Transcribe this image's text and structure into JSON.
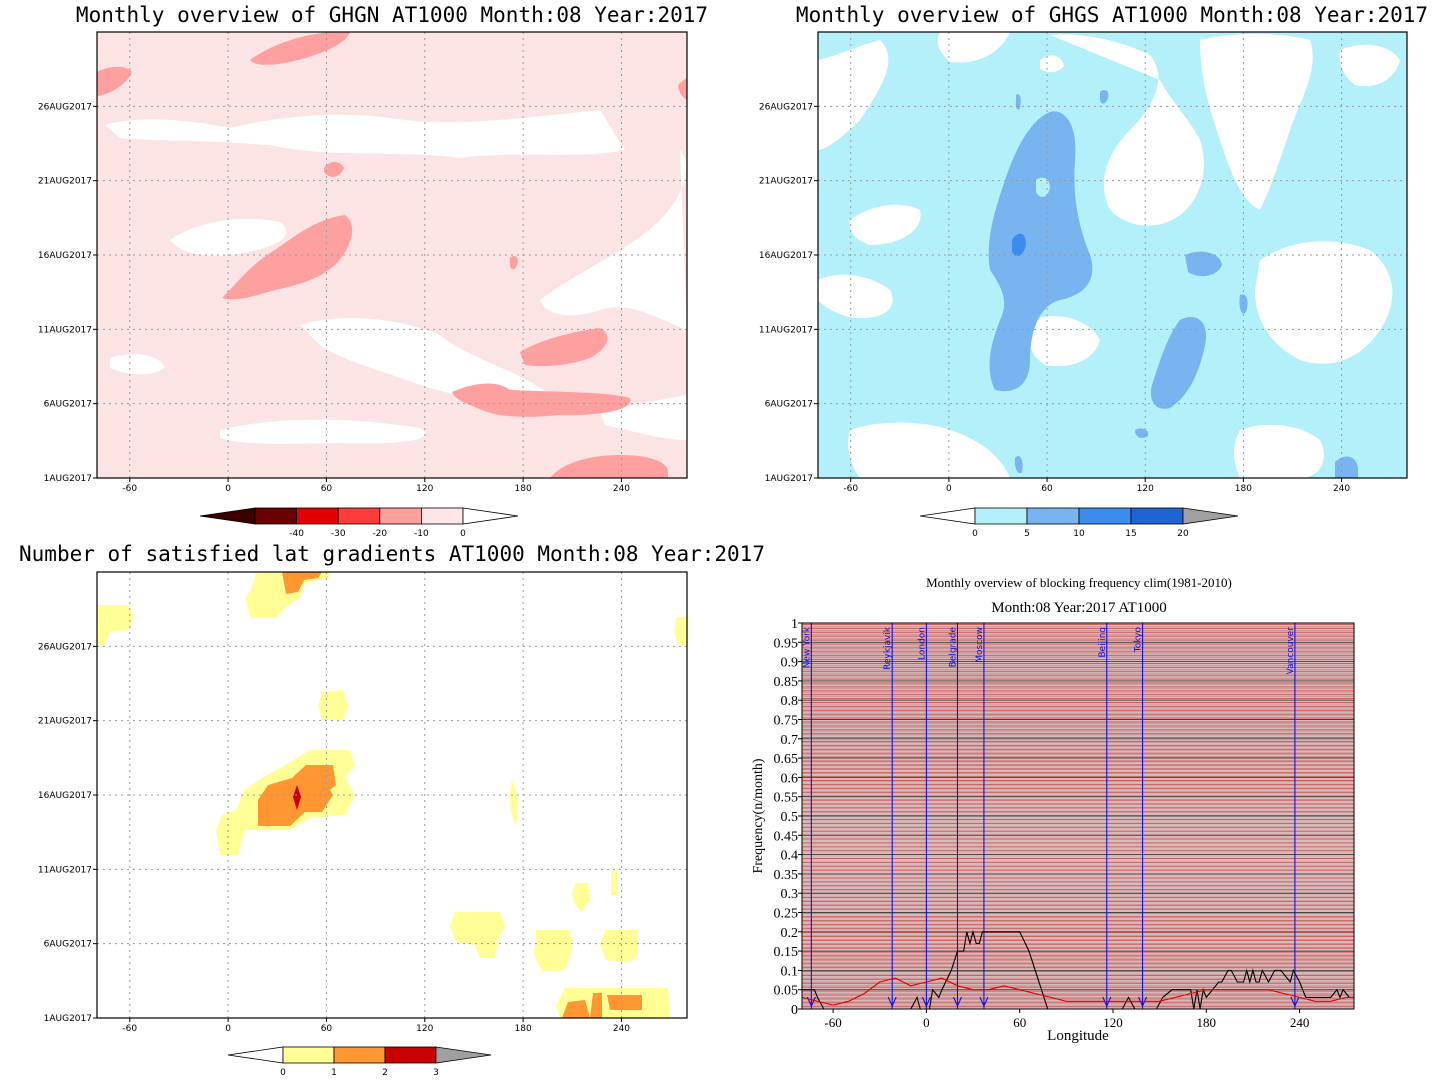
{
  "chart_data": [
    {
      "type": "heatmap",
      "title": "Monthly overview of GHGN AT1000 Month:08 Year:2017",
      "x_ticks": [
        -60,
        0,
        60,
        120,
        180,
        240
      ],
      "xlim": [
        -80,
        280
      ],
      "y_ticks": [
        "1AUG2017",
        "6AUG2017",
        "11AUG2017",
        "16AUG2017",
        "21AUG2017",
        "26AUG2017"
      ],
      "y_days": [
        1,
        6,
        11,
        16,
        21,
        26
      ],
      "ylim": [
        1,
        31
      ],
      "colorbar": {
        "labels": [
          "-40",
          "-30",
          "-20",
          "-10",
          "0"
        ],
        "colors": [
          "#6b0000",
          "#e30000",
          "#ff3c3c",
          "#ffa0a0",
          "#ffe6e6"
        ],
        "extend_colors": [
          "#3b0000",
          "#ffffff"
        ]
      },
      "background_color": "#fde4e4",
      "fill_color": "#ffa0a0"
    },
    {
      "type": "heatmap",
      "title": "Monthly overview of GHGS AT1000 Month:08 Year:2017",
      "x_ticks": [
        -60,
        0,
        60,
        120,
        180,
        240
      ],
      "xlim": [
        -80,
        280
      ],
      "y_ticks": [
        "1AUG2017",
        "6AUG2017",
        "11AUG2017",
        "16AUG2017",
        "21AUG2017",
        "26AUG2017"
      ],
      "y_days": [
        1,
        6,
        11,
        16,
        21,
        26
      ],
      "ylim": [
        1,
        31
      ],
      "colorbar": {
        "labels": [
          "0",
          "5",
          "10",
          "15",
          "20"
        ],
        "colors": [
          "#b4f0fa",
          "#78b4f0",
          "#3c8cf0",
          "#1e64d2"
        ],
        "extend_colors": [
          "#ffffff",
          "#a0a0a0"
        ]
      },
      "background_color": "#b4f0fa",
      "fill_color": "#78b4f0"
    },
    {
      "type": "heatmap",
      "title": "Number of satisfied lat gradients AT1000 Month:08 Year:2017",
      "x_ticks": [
        -60,
        0,
        60,
        120,
        180,
        240
      ],
      "xlim": [
        -80,
        280
      ],
      "y_ticks": [
        "1AUG2017",
        "6AUG2017",
        "11AUG2017",
        "16AUG2017",
        "21AUG2017",
        "26AUG2017"
      ],
      "y_days": [
        1,
        6,
        11,
        16,
        21,
        26
      ],
      "ylim": [
        1,
        31
      ],
      "colorbar": {
        "labels": [
          "0",
          "1",
          "2",
          "3"
        ],
        "colors": [
          "#ffff96",
          "#ff9632",
          "#c80000"
        ],
        "extend_colors": [
          "#ffffff",
          "#a0a0a0"
        ]
      },
      "background_color": "#ffffff",
      "fill_color": "#ffff96"
    },
    {
      "type": "line",
      "title": "Monthly overview of blocking frequency clim(1981-2010)",
      "subtitle": "Month:08 Year:2017  AT1000",
      "xlabel": "Longitude",
      "ylabel": "Frequency(n/month)",
      "xlim": [
        -80,
        275
      ],
      "ylim": [
        0,
        1
      ],
      "x_ticks": [
        -60,
        0,
        60,
        120,
        180,
        240
      ],
      "y_ticks": [
        "0",
        "0.05",
        "0.1",
        "0.15",
        "0.2",
        "0.25",
        "0.3",
        "0.35",
        "0.4",
        "0.45",
        "0.5",
        "0.55",
        "0.6",
        "0.65",
        "0.7",
        "0.75",
        "0.8",
        "0.85",
        "0.9",
        "0.95",
        "1"
      ],
      "cities": [
        {
          "name": "New York",
          "lon": -74
        },
        {
          "name": "Reykjavik",
          "lon": -22
        },
        {
          "name": "London",
          "lon": 0
        },
        {
          "name": "Belgrade",
          "lon": 20
        },
        {
          "name": "Moscow",
          "lon": 37
        },
        {
          "name": "Beijing",
          "lon": 116
        },
        {
          "name": "Tokyo",
          "lon": 139
        },
        {
          "name": "Vancouver",
          "lon": 237
        }
      ],
      "series": [
        {
          "color": "#000000",
          "x": [
            -80,
            -72,
            -70,
            -66,
            -60,
            -40,
            -25,
            -18,
            -10,
            -6,
            -4,
            2,
            4,
            8,
            10,
            16,
            20,
            24,
            26,
            28,
            30,
            32,
            34,
            36,
            40,
            60,
            66,
            70,
            74,
            78,
            84,
            100,
            112,
            120,
            126,
            130,
            134,
            140,
            148,
            152,
            158,
            164,
            170,
            172,
            174,
            176,
            178,
            180,
            184,
            188,
            190,
            194,
            196,
            200,
            204,
            206,
            208,
            210,
            212,
            214,
            216,
            220,
            224,
            228,
            234,
            236,
            240,
            244,
            260,
            264,
            266,
            268,
            272,
            275
          ],
          "y": [
            0.05,
            0.05,
            0.03,
            0.0,
            0.0,
            0.0,
            0.0,
            0.0,
            0.0,
            0.03,
            0.0,
            0.0,
            0.05,
            0.03,
            0.05,
            0.1,
            0.15,
            0.15,
            0.2,
            0.17,
            0.2,
            0.17,
            0.17,
            0.2,
            0.2,
            0.2,
            0.15,
            0.1,
            0.05,
            0.0,
            0.0,
            0.0,
            0.0,
            0.0,
            0.0,
            0.03,
            0.0,
            0.0,
            0.0,
            0.03,
            0.05,
            0.05,
            0.05,
            0.0,
            0.05,
            0.0,
            0.05,
            0.03,
            0.05,
            0.07,
            0.07,
            0.1,
            0.1,
            0.07,
            0.07,
            0.1,
            0.07,
            0.1,
            0.07,
            0.07,
            0.1,
            0.07,
            0.1,
            0.1,
            0.07,
            0.1,
            0.07,
            0.03,
            0.03,
            0.05,
            0.03,
            0.05,
            0.03,
            0.03
          ]
        },
        {
          "color": "#e00000",
          "x": [
            -80,
            -70,
            -60,
            -50,
            -40,
            -30,
            -20,
            -10,
            0,
            10,
            20,
            30,
            40,
            50,
            60,
            70,
            80,
            90,
            100,
            110,
            120,
            130,
            140,
            150,
            160,
            170,
            180,
            190,
            200,
            210,
            220,
            230,
            240,
            250,
            260,
            270,
            275
          ],
          "y": [
            0.03,
            0.02,
            0.01,
            0.02,
            0.04,
            0.07,
            0.08,
            0.06,
            0.07,
            0.08,
            0.06,
            0.05,
            0.05,
            0.06,
            0.05,
            0.04,
            0.03,
            0.02,
            0.02,
            0.02,
            0.02,
            0.02,
            0.02,
            0.02,
            0.03,
            0.04,
            0.05,
            0.05,
            0.05,
            0.05,
            0.05,
            0.04,
            0.03,
            0.02,
            0.02,
            0.03,
            0.03
          ]
        }
      ]
    }
  ]
}
